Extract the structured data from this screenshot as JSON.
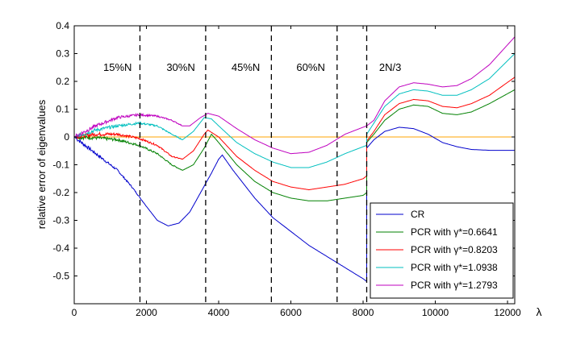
{
  "chart_data": {
    "type": "line",
    "title": "",
    "xlabel": "λ",
    "ylabel": "relative error of eigenvalues",
    "xlim": [
      0,
      12200
    ],
    "ylim": [
      -0.6,
      0.4
    ],
    "xticks": [
      0,
      2000,
      4000,
      6000,
      8000,
      10000,
      12000
    ],
    "xtick_labels": [
      "0",
      "2000",
      "4000",
      "6000",
      "8000",
      "10000",
      "12000"
    ],
    "yticks": [
      0.4,
      0.3,
      0.2,
      0.1,
      0,
      -0.1,
      -0.2,
      -0.3,
      -0.4,
      -0.5
    ],
    "ytick_labels": [
      "0.4",
      "0.3",
      "0.2",
      "0.1",
      "0",
      "-0.1",
      "-0.2",
      "-0.3",
      "-0.4",
      "-0.5"
    ],
    "grid": false,
    "legend_position": "bottom-right",
    "reference_line": {
      "y": 0,
      "color": "#ffa500"
    },
    "vlines": [
      {
        "x": 1820,
        "label": "15%N",
        "label_x": 1200
      },
      {
        "x": 3640,
        "label": "30%N",
        "label_x": 2950
      },
      {
        "x": 5460,
        "label": "45%N",
        "label_x": 4750
      },
      {
        "x": 7280,
        "label": "60%N",
        "label_x": 6550
      },
      {
        "x": 8100,
        "label": "2N/3",
        "label_x": 8750
      }
    ],
    "series": [
      {
        "name": "CR",
        "color": "#0000cc",
        "noisy_until": 1900,
        "points": [
          [
            0,
            0
          ],
          [
            400,
            -0.04
          ],
          [
            800,
            -0.08
          ],
          [
            1200,
            -0.12
          ],
          [
            1600,
            -0.18
          ],
          [
            2000,
            -0.25
          ],
          [
            2300,
            -0.3
          ],
          [
            2600,
            -0.32
          ],
          [
            2900,
            -0.31
          ],
          [
            3200,
            -0.27
          ],
          [
            3500,
            -0.2
          ],
          [
            3800,
            -0.13
          ],
          [
            4000,
            -0.08
          ],
          [
            4100,
            -0.065
          ],
          [
            4400,
            -0.12
          ],
          [
            5000,
            -0.22
          ],
          [
            5500,
            -0.29
          ],
          [
            6000,
            -0.34
          ],
          [
            6500,
            -0.39
          ],
          [
            7000,
            -0.43
          ],
          [
            7500,
            -0.47
          ],
          [
            8000,
            -0.51
          ],
          [
            8100,
            -0.52
          ],
          [
            8100,
            -0.04
          ],
          [
            8300,
            -0.01
          ],
          [
            8600,
            0.02
          ],
          [
            9000,
            0.035
          ],
          [
            9400,
            0.03
          ],
          [
            9800,
            0.01
          ],
          [
            10200,
            -0.02
          ],
          [
            10600,
            -0.035
          ],
          [
            11000,
            -0.045
          ],
          [
            11500,
            -0.048
          ],
          [
            12200,
            -0.048
          ]
        ]
      },
      {
        "name": "PCR with γ*=0.6641",
        "color": "#008000",
        "noisy_until": 3000,
        "points": [
          [
            0,
            0
          ],
          [
            600,
            -0.003
          ],
          [
            1200,
            -0.01
          ],
          [
            1800,
            -0.03
          ],
          [
            2300,
            -0.06
          ],
          [
            2700,
            -0.1
          ],
          [
            3000,
            -0.12
          ],
          [
            3300,
            -0.1
          ],
          [
            3600,
            -0.04
          ],
          [
            3800,
            0.01
          ],
          [
            4000,
            -0.02
          ],
          [
            4500,
            -0.1
          ],
          [
            5000,
            -0.16
          ],
          [
            5500,
            -0.2
          ],
          [
            6000,
            -0.22
          ],
          [
            6500,
            -0.23
          ],
          [
            7000,
            -0.23
          ],
          [
            7500,
            -0.22
          ],
          [
            8000,
            -0.21
          ],
          [
            8100,
            -0.2
          ],
          [
            8100,
            -0.02
          ],
          [
            8300,
            0.01
          ],
          [
            8600,
            0.06
          ],
          [
            9000,
            0.1
          ],
          [
            9400,
            0.115
          ],
          [
            9800,
            0.11
          ],
          [
            10200,
            0.085
          ],
          [
            10600,
            0.08
          ],
          [
            11000,
            0.09
          ],
          [
            11500,
            0.12
          ],
          [
            12200,
            0.17
          ]
        ]
      },
      {
        "name": "PCR with γ*=0.8203",
        "color": "#ff0000",
        "noisy_until": 3000,
        "points": [
          [
            0,
            0
          ],
          [
            600,
            0.01
          ],
          [
            1200,
            0.01
          ],
          [
            1800,
            -0.005
          ],
          [
            2300,
            -0.03
          ],
          [
            2700,
            -0.07
          ],
          [
            3000,
            -0.08
          ],
          [
            3300,
            -0.05
          ],
          [
            3600,
            0.01
          ],
          [
            3700,
            0.025
          ],
          [
            4000,
            0.0
          ],
          [
            4500,
            -0.07
          ],
          [
            5000,
            -0.12
          ],
          [
            5500,
            -0.16
          ],
          [
            6000,
            -0.18
          ],
          [
            6500,
            -0.19
          ],
          [
            7000,
            -0.18
          ],
          [
            7500,
            -0.17
          ],
          [
            8000,
            -0.15
          ],
          [
            8100,
            -0.14
          ],
          [
            8100,
            -0.015
          ],
          [
            8300,
            0.02
          ],
          [
            8600,
            0.08
          ],
          [
            9000,
            0.12
          ],
          [
            9400,
            0.135
          ],
          [
            9800,
            0.13
          ],
          [
            10200,
            0.11
          ],
          [
            10600,
            0.105
          ],
          [
            11000,
            0.12
          ],
          [
            11500,
            0.15
          ],
          [
            12200,
            0.215
          ]
        ]
      },
      {
        "name": "PCR with γ*=1.0938",
        "color": "#00bfbf",
        "noisy_until": 3000,
        "points": [
          [
            0,
            0
          ],
          [
            600,
            0.025
          ],
          [
            1200,
            0.04
          ],
          [
            1800,
            0.05
          ],
          [
            2300,
            0.04
          ],
          [
            2700,
            0.01
          ],
          [
            3000,
            -0.01
          ],
          [
            3300,
            0.02
          ],
          [
            3600,
            0.07
          ],
          [
            3800,
            0.065
          ],
          [
            4000,
            0.04
          ],
          [
            4500,
            -0.02
          ],
          [
            5000,
            -0.06
          ],
          [
            5500,
            -0.09
          ],
          [
            6000,
            -0.11
          ],
          [
            6500,
            -0.11
          ],
          [
            7000,
            -0.09
          ],
          [
            7500,
            -0.06
          ],
          [
            8000,
            -0.035
          ],
          [
            8100,
            -0.03
          ],
          [
            8100,
            0.01
          ],
          [
            8300,
            0.05
          ],
          [
            8600,
            0.11
          ],
          [
            9000,
            0.155
          ],
          [
            9400,
            0.17
          ],
          [
            9800,
            0.165
          ],
          [
            10200,
            0.15
          ],
          [
            10600,
            0.15
          ],
          [
            11000,
            0.17
          ],
          [
            11500,
            0.21
          ],
          [
            12200,
            0.3
          ]
        ]
      },
      {
        "name": "PCR with γ*=1.2793",
        "color": "#bf00bf",
        "noisy_until": 3000,
        "points": [
          [
            0,
            0
          ],
          [
            600,
            0.04
          ],
          [
            1200,
            0.07
          ],
          [
            1800,
            0.08
          ],
          [
            2300,
            0.075
          ],
          [
            2700,
            0.06
          ],
          [
            3000,
            0.04
          ],
          [
            3200,
            0.04
          ],
          [
            3500,
            0.07
          ],
          [
            3700,
            0.085
          ],
          [
            4000,
            0.075
          ],
          [
            4500,
            0.03
          ],
          [
            5000,
            -0.01
          ],
          [
            5500,
            -0.04
          ],
          [
            6000,
            -0.06
          ],
          [
            6500,
            -0.055
          ],
          [
            7000,
            -0.03
          ],
          [
            7500,
            0.01
          ],
          [
            8000,
            0.035
          ],
          [
            8100,
            0.04
          ],
          [
            8300,
            0.06
          ],
          [
            8600,
            0.13
          ],
          [
            9000,
            0.18
          ],
          [
            9400,
            0.195
          ],
          [
            9800,
            0.19
          ],
          [
            10200,
            0.18
          ],
          [
            10600,
            0.185
          ],
          [
            11000,
            0.21
          ],
          [
            11500,
            0.26
          ],
          [
            12200,
            0.36
          ]
        ]
      }
    ]
  }
}
